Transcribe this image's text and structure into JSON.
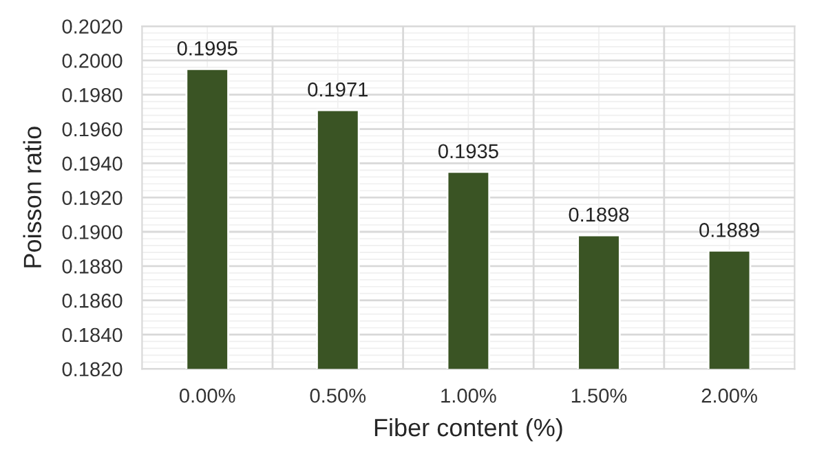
{
  "chart_data": {
    "type": "bar",
    "xlabel": "Fiber content (%)",
    "ylabel": "Poisson ratio",
    "categories": [
      "0.00%",
      "0.50%",
      "1.00%",
      "1.50%",
      "2.00%"
    ],
    "values": [
      0.1995,
      0.1971,
      0.1935,
      0.1898,
      0.1889
    ],
    "color": "#3a5424",
    "ylim": [
      0.182,
      0.202
    ],
    "yticks": [
      {
        "value": 0.182,
        "label": "0.1820"
      },
      {
        "value": 0.184,
        "label": "0.1840"
      },
      {
        "value": 0.186,
        "label": "0.1860"
      },
      {
        "value": 0.188,
        "label": "0.1880"
      },
      {
        "value": 0.19,
        "label": "0.1900"
      },
      {
        "value": 0.192,
        "label": "0.1920"
      },
      {
        "value": 0.194,
        "label": "0.1940"
      },
      {
        "value": 0.196,
        "label": "0.1960"
      },
      {
        "value": 0.198,
        "label": "0.1980"
      },
      {
        "value": 0.2,
        "label": "0.2000"
      },
      {
        "value": 0.202,
        "label": "0.2020"
      }
    ],
    "grid": true,
    "data_labels": true
  }
}
